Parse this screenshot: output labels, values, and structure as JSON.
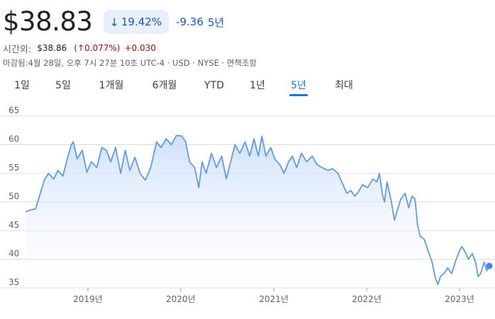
{
  "quote": {
    "price": "$38.83",
    "change_pct": "19.42%",
    "change_abs": "-9.36",
    "range": "5년",
    "after_hours_label": "시간외:",
    "after_hours_price": "$38.86",
    "after_hours_pct": "(↑0.077%)",
    "after_hours_abs": "+0.030",
    "meta": "마감됨:4월 28일, 오후 7시 27분 10초 UTC-4 · USD · NYSE · 면책조항"
  },
  "icons": {
    "change_direction": "arrow-down-icon"
  },
  "tabs": [
    {
      "label": "1일"
    },
    {
      "label": "5일"
    },
    {
      "label": "1개월"
    },
    {
      "label": "6개월"
    },
    {
      "label": "YTD"
    },
    {
      "label": "1년"
    },
    {
      "label": "5년",
      "active": true
    },
    {
      "label": "최대"
    }
  ],
  "colors": {
    "line": "#5f9bea",
    "fill_top": "#c9dcfa",
    "fill_bottom": "#ffffff",
    "grid": "#dadce0",
    "negative": "#1a56c5",
    "after_hours": "#a50e0e",
    "active_tab": "#1a73e8"
  },
  "chart_data": {
    "type": "area",
    "xlabel": "",
    "ylabel": "",
    "ylim": [
      35,
      65
    ],
    "xlim": [
      "2018-05-01",
      "2023-04-28"
    ],
    "yticks": [
      35,
      40,
      45,
      50,
      55,
      60,
      65
    ],
    "xticks": [
      {
        "date": "2019-01-01",
        "label": "2019년"
      },
      {
        "date": "2020-01-01",
        "label": "2020년"
      },
      {
        "date": "2021-01-01",
        "label": "2021년"
      },
      {
        "date": "2022-01-01",
        "label": "2022년"
      },
      {
        "date": "2023-01-01",
        "label": "2023년"
      }
    ],
    "grid": "horizontal",
    "series": [
      {
        "points": [
          [
            "2018-05-01",
            48.3
          ],
          [
            "2018-05-22",
            48.6
          ],
          [
            "2018-06-10",
            48.8
          ],
          [
            "2018-06-28",
            51.5
          ],
          [
            "2018-07-15",
            53.9
          ],
          [
            "2018-07-30",
            55.0
          ],
          [
            "2018-08-20",
            54.0
          ],
          [
            "2018-09-05",
            55.5
          ],
          [
            "2018-09-25",
            54.5
          ],
          [
            "2018-10-12",
            57.5
          ],
          [
            "2018-10-28",
            60.0
          ],
          [
            "2018-11-05",
            60.5
          ],
          [
            "2018-11-20",
            57.5
          ],
          [
            "2018-12-10",
            59.0
          ],
          [
            "2018-12-28",
            55.2
          ],
          [
            "2019-01-15",
            57.0
          ],
          [
            "2019-02-05",
            56.0
          ],
          [
            "2019-02-25",
            59.5
          ],
          [
            "2019-03-15",
            59.0
          ],
          [
            "2019-04-01",
            57.0
          ],
          [
            "2019-04-20",
            59.5
          ],
          [
            "2019-05-10",
            55.0
          ],
          [
            "2019-05-28",
            59.0
          ],
          [
            "2019-06-15",
            55.5
          ],
          [
            "2019-07-05",
            57.8
          ],
          [
            "2019-07-25",
            55.0
          ],
          [
            "2019-08-15",
            53.8
          ],
          [
            "2019-09-05",
            56.0
          ],
          [
            "2019-09-28",
            60.5
          ],
          [
            "2019-10-15",
            59.5
          ],
          [
            "2019-11-05",
            61.0
          ],
          [
            "2019-11-25",
            60.0
          ],
          [
            "2019-12-15",
            61.6
          ],
          [
            "2020-01-05",
            61.5
          ],
          [
            "2020-01-20",
            60.5
          ],
          [
            "2020-02-05",
            57.0
          ],
          [
            "2020-02-25",
            56.0
          ],
          [
            "2020-03-12",
            52.5
          ],
          [
            "2020-03-25",
            57.0
          ],
          [
            "2020-04-10",
            55.0
          ],
          [
            "2020-05-01",
            58.5
          ],
          [
            "2020-05-20",
            56.0
          ],
          [
            "2020-06-10",
            58.0
          ],
          [
            "2020-06-28",
            54.0
          ],
          [
            "2020-07-15",
            57.0
          ],
          [
            "2020-08-01",
            60.0
          ],
          [
            "2020-08-20",
            58.5
          ],
          [
            "2020-09-10",
            60.5
          ],
          [
            "2020-09-28",
            58.0
          ],
          [
            "2020-10-15",
            61.0
          ],
          [
            "2020-11-01",
            58.0
          ],
          [
            "2020-11-15",
            61.5
          ],
          [
            "2020-12-01",
            58.0
          ],
          [
            "2020-12-20",
            59.5
          ],
          [
            "2021-01-05",
            57.5
          ],
          [
            "2021-01-25",
            56.5
          ],
          [
            "2021-02-10",
            55.0
          ],
          [
            "2021-02-28",
            57.0
          ],
          [
            "2021-03-15",
            58.0
          ],
          [
            "2021-04-01",
            56.0
          ],
          [
            "2021-04-20",
            58.5
          ],
          [
            "2021-05-10",
            57.0
          ],
          [
            "2021-06-01",
            58.0
          ],
          [
            "2021-06-20",
            56.5
          ],
          [
            "2021-07-10",
            56.0
          ],
          [
            "2021-08-01",
            55.5
          ],
          [
            "2021-08-20",
            55.8
          ],
          [
            "2021-09-10",
            55.0
          ],
          [
            "2021-09-30",
            53.0
          ],
          [
            "2021-10-15",
            51.5
          ],
          [
            "2021-10-30",
            52.0
          ],
          [
            "2021-11-15",
            51.0
          ],
          [
            "2021-11-30",
            51.8
          ],
          [
            "2021-12-15",
            53.0
          ],
          [
            "2022-01-05",
            52.5
          ],
          [
            "2022-01-25",
            54.0
          ],
          [
            "2022-02-10",
            53.5
          ],
          [
            "2022-02-20",
            55.0
          ],
          [
            "2022-03-05",
            51.0
          ],
          [
            "2022-03-12",
            50.0
          ],
          [
            "2022-03-22",
            53.5
          ],
          [
            "2022-04-08",
            50.0
          ],
          [
            "2022-04-20",
            46.8
          ],
          [
            "2022-05-01",
            48.5
          ],
          [
            "2022-05-15",
            50.5
          ],
          [
            "2022-06-01",
            51.5
          ],
          [
            "2022-06-15",
            49.0
          ],
          [
            "2022-06-28",
            51.0
          ],
          [
            "2022-07-10",
            50.5
          ],
          [
            "2022-07-20",
            46.0
          ],
          [
            "2022-07-30",
            44.0
          ],
          [
            "2022-08-15",
            43.5
          ],
          [
            "2022-08-30",
            41.5
          ],
          [
            "2022-09-15",
            39.5
          ],
          [
            "2022-09-28",
            36.7
          ],
          [
            "2022-10-08",
            35.6
          ],
          [
            "2022-10-18",
            37.0
          ],
          [
            "2022-11-01",
            37.5
          ],
          [
            "2022-11-15",
            38.5
          ],
          [
            "2022-12-01",
            37.5
          ],
          [
            "2022-12-15",
            39.5
          ],
          [
            "2023-01-01",
            41.5
          ],
          [
            "2023-01-10",
            42.2
          ],
          [
            "2023-01-20",
            41.5
          ],
          [
            "2023-02-05",
            40.0
          ],
          [
            "2023-02-20",
            41.0
          ],
          [
            "2023-03-05",
            39.5
          ],
          [
            "2023-03-15",
            37.0
          ],
          [
            "2023-03-25",
            37.5
          ],
          [
            "2023-04-08",
            39.5
          ],
          [
            "2023-04-18",
            38.0
          ],
          [
            "2023-04-28",
            38.83
          ]
        ]
      }
    ]
  }
}
